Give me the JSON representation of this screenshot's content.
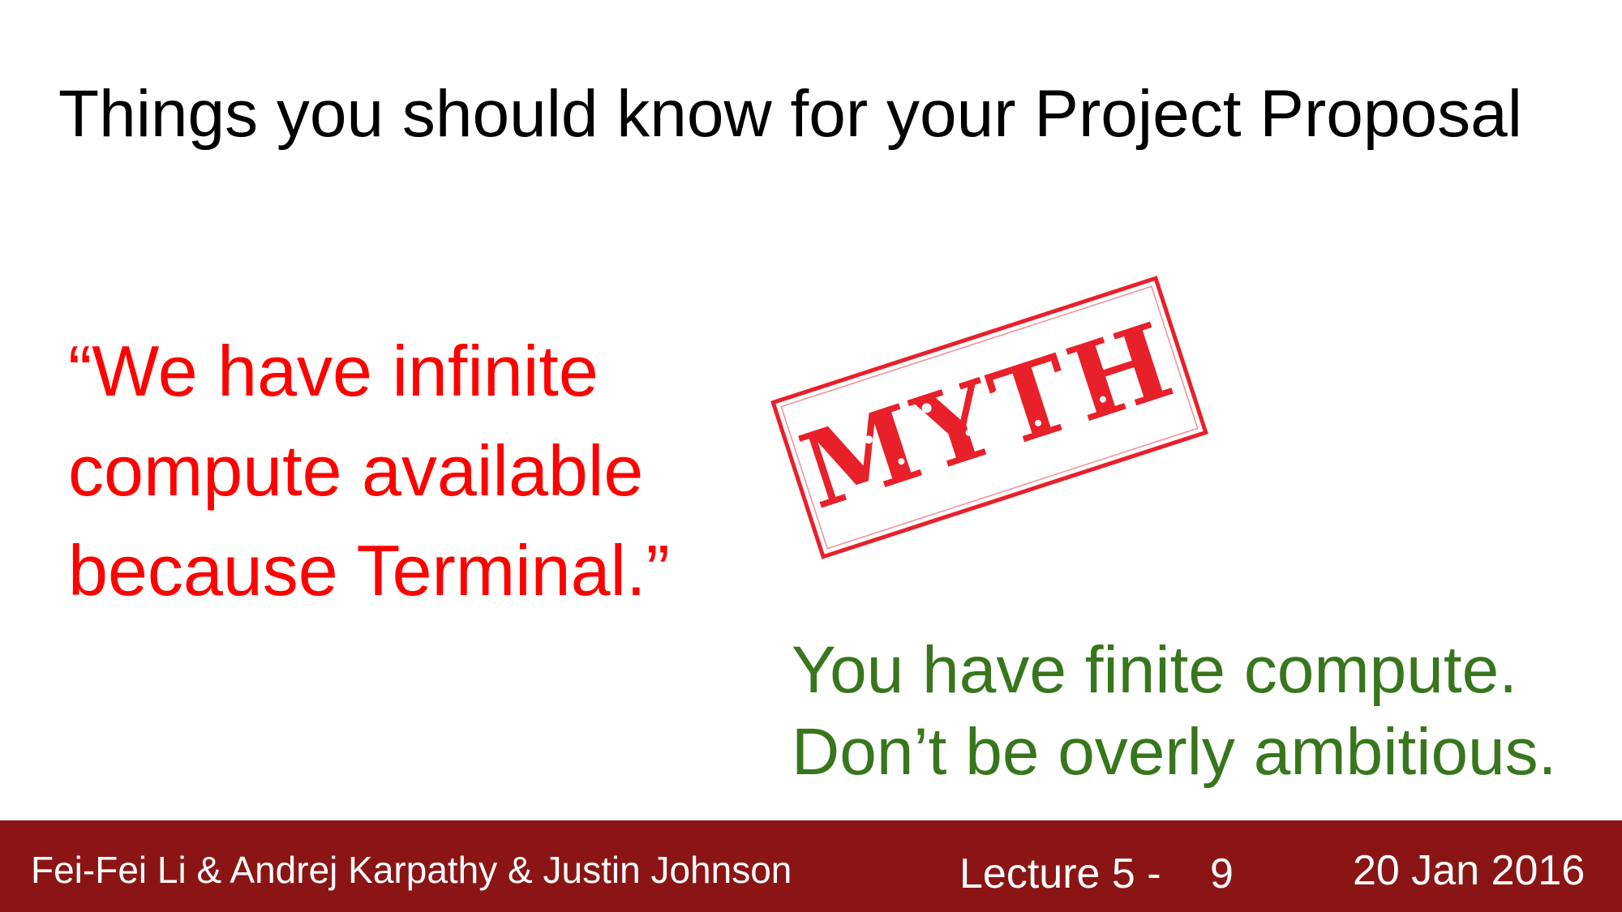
{
  "slide": {
    "title": "Things you should know for your Project Proposal",
    "quote_lines": [
      "“We have infinite",
      "compute available",
      "because Terminal.”"
    ],
    "stamp_text": "MYTH",
    "answer_lines": [
      "You have finite compute.",
      "Don’t be overly ambitious."
    ]
  },
  "footer": {
    "authors": "Fei-Fei Li & Andrej Karpathy & Justin Johnson",
    "lecture": "Lecture 5 -",
    "slide_number": "9",
    "date": "20 Jan 2016"
  },
  "colors": {
    "quote": "#ff0000",
    "answer": "#38761d",
    "stamp": "#e8202a",
    "footer_bg": "#8b1515"
  }
}
